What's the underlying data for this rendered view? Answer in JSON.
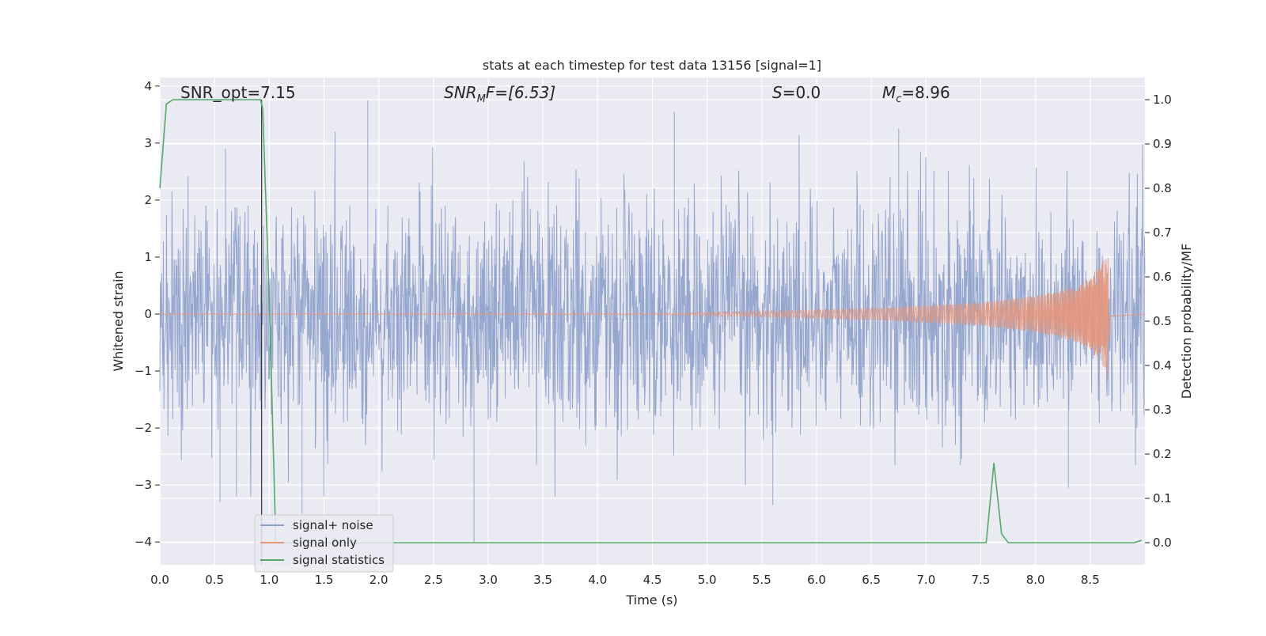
{
  "chart_data": {
    "type": "line",
    "title": "stats at each timestep for test data 13156 [signal=1]",
    "xlabel": "Time (s)",
    "ylabel_left": "Whitened strain",
    "ylabel_right": "Detection probability/MF",
    "xlim": [
      0.0,
      9.0
    ],
    "ylim_left": [
      -4.4,
      4.15
    ],
    "ylim_right": [
      -0.05,
      1.05
    ],
    "x_ticks": [
      "0.0",
      "0.5",
      "1.0",
      "1.5",
      "2.0",
      "2.5",
      "3.0",
      "3.5",
      "4.0",
      "4.5",
      "5.0",
      "5.5",
      "6.0",
      "6.5",
      "7.0",
      "7.5",
      "8.0",
      "8.5"
    ],
    "y_ticks_left": [
      "4",
      "3",
      "2",
      "1",
      "0",
      "−1",
      "−2",
      "−3",
      "−4"
    ],
    "y_ticks_right": [
      "1.0",
      "0.9",
      "0.8",
      "0.7",
      "0.6",
      "0.5",
      "0.4",
      "0.3",
      "0.2",
      "0.1",
      "0.0"
    ],
    "grid": true,
    "legend_position": "lower-left",
    "annotations": {
      "snr_opt": "SNR_opt=7.15",
      "snr_mf_sym": "SNR",
      "snr_mf_sub": "M",
      "snr_mf_rest": "F=[6.53]",
      "s_sym": "S",
      "s_rest": "=0.0",
      "mc_sym": "M",
      "mc_sub": "c",
      "mc_rest": "=8.96"
    },
    "series": [
      {
        "name": "signal+ noise",
        "axis": "left",
        "color": "#8da0cb",
        "style": "dense-noise",
        "seed": 13156,
        "sample_count": 2200,
        "sigma": 1.0,
        "outliers": [
          [
            0.55,
            -3.3
          ],
          [
            0.7,
            -3.2
          ],
          [
            0.6,
            2.9
          ],
          [
            1.9,
            3.75
          ],
          [
            2.87,
            -4.0
          ],
          [
            1.3,
            -3.5
          ],
          [
            4.7,
            3.55
          ],
          [
            5.6,
            -3.35
          ],
          [
            6.75,
            3.25
          ],
          [
            8.3,
            -3.05
          ]
        ]
      },
      {
        "name": "signal only",
        "axis": "left",
        "color": "#e5967a",
        "style": "chirp",
        "amplitude_points": [
          [
            0.0,
            0.005
          ],
          [
            4.5,
            0.01
          ],
          [
            5.5,
            0.05
          ],
          [
            6.5,
            0.1
          ],
          [
            7.5,
            0.2
          ],
          [
            8.0,
            0.32
          ],
          [
            8.4,
            0.5
          ],
          [
            8.6,
            0.85
          ],
          [
            8.66,
            1.15
          ],
          [
            8.68,
            0.05
          ],
          [
            9.0,
            0.0
          ]
        ]
      },
      {
        "name": "signal statistics",
        "axis": "right",
        "color": "#55a868",
        "style": "line",
        "points": [
          [
            0.0,
            0.8
          ],
          [
            0.06,
            0.99
          ],
          [
            0.12,
            1.0
          ],
          [
            0.92,
            1.0
          ],
          [
            0.94,
            0.98
          ],
          [
            1.0,
            0.55
          ],
          [
            1.06,
            0.0
          ],
          [
            7.55,
            0.0
          ],
          [
            7.62,
            0.18
          ],
          [
            7.69,
            0.02
          ],
          [
            7.75,
            0.0
          ],
          [
            8.9,
            0.0
          ],
          [
            8.97,
            0.005
          ]
        ]
      }
    ],
    "vline": {
      "x": 0.93,
      "color": "#333333"
    }
  }
}
